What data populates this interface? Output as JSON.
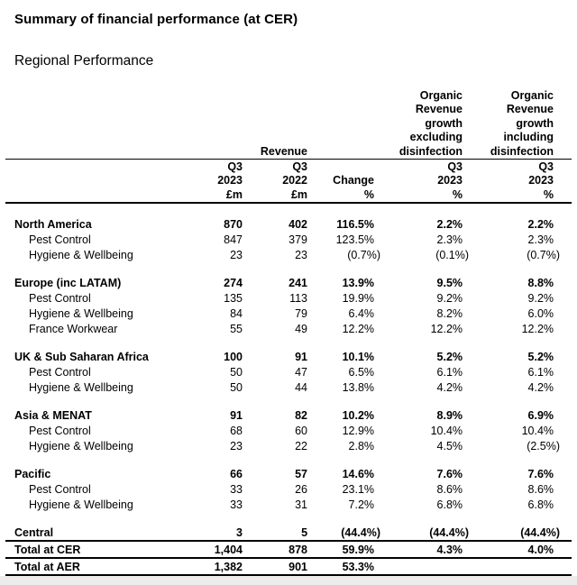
{
  "page": {
    "title": "Summary of financial performance (at CER)",
    "subtitle": "Regional Performance"
  },
  "table": {
    "header": {
      "revenue_group_label": "Revenue",
      "organic_excluding_label": "Organic Revenue growth excluding disinfection",
      "organic_including_label": "Organic Revenue growth including disinfection"
    },
    "sub_headers": [
      "Q3\n2023\n£m",
      "Q3\n2022\n£m",
      "Change\n%",
      "Q3\n2023\n%",
      "Q3\n2023\n%"
    ],
    "rows": [
      {
        "style": "spacer"
      },
      {
        "style": "group",
        "label": "North America",
        "values": [
          "870",
          "402",
          "116.5%",
          "2.2%",
          "2.2%"
        ]
      },
      {
        "style": "sub",
        "label": "Pest Control",
        "values": [
          "847",
          "379",
          "123.5%",
          "2.3%",
          "2.3%"
        ]
      },
      {
        "style": "sub",
        "label": "Hygiene & Wellbeing",
        "values": [
          "23",
          "23",
          "(0.7%)",
          "(0.1%)",
          "(0.7%)"
        ]
      },
      {
        "style": "spacer"
      },
      {
        "style": "group",
        "label": "Europe (inc LATAM)",
        "values": [
          "274",
          "241",
          "13.9%",
          "9.5%",
          "8.8%"
        ]
      },
      {
        "style": "sub",
        "label": "Pest Control",
        "values": [
          "135",
          "113",
          "19.9%",
          "9.2%",
          "9.2%"
        ]
      },
      {
        "style": "sub",
        "label": "Hygiene & Wellbeing",
        "values": [
          "84",
          "79",
          "6.4%",
          "8.2%",
          "6.0%"
        ]
      },
      {
        "style": "sub",
        "label": "France Workwear",
        "values": [
          "55",
          "49",
          "12.2%",
          "12.2%",
          "12.2%"
        ]
      },
      {
        "style": "spacer"
      },
      {
        "style": "group",
        "label": "UK & Sub Saharan Africa",
        "values": [
          "100",
          "91",
          "10.1%",
          "5.2%",
          "5.2%"
        ]
      },
      {
        "style": "sub",
        "label": "Pest Control",
        "values": [
          "50",
          "47",
          "6.5%",
          "6.1%",
          "6.1%"
        ]
      },
      {
        "style": "sub",
        "label": "Hygiene & Wellbeing",
        "values": [
          "50",
          "44",
          "13.8%",
          "4.2%",
          "4.2%"
        ]
      },
      {
        "style": "spacer"
      },
      {
        "style": "group",
        "label": "Asia & MENAT",
        "values": [
          "91",
          "82",
          "10.2%",
          "8.9%",
          "6.9%"
        ]
      },
      {
        "style": "sub",
        "label": "Pest Control",
        "values": [
          "68",
          "60",
          "12.9%",
          "10.4%",
          "10.4%"
        ]
      },
      {
        "style": "sub",
        "label": "Hygiene & Wellbeing",
        "values": [
          "23",
          "22",
          "2.8%",
          "4.5%",
          "(2.5%)"
        ]
      },
      {
        "style": "spacer"
      },
      {
        "style": "group",
        "label": "Pacific",
        "values": [
          "66",
          "57",
          "14.6%",
          "7.6%",
          "7.6%"
        ]
      },
      {
        "style": "sub",
        "label": "Pest Control",
        "values": [
          "33",
          "26",
          "23.1%",
          "8.6%",
          "8.6%"
        ]
      },
      {
        "style": "sub",
        "label": "Hygiene & Wellbeing",
        "values": [
          "33",
          "31",
          "7.2%",
          "6.8%",
          "6.8%"
        ]
      },
      {
        "style": "spacer"
      },
      {
        "style": "central",
        "label": "Central",
        "values": [
          "3",
          "5",
          "(44.4%)",
          "(44.4%)",
          "(44.4%)"
        ]
      },
      {
        "style": "total-cer",
        "label": "Total at CER",
        "values": [
          "1,404",
          "878",
          "59.9%",
          "4.3%",
          "4.0%"
        ]
      },
      {
        "style": "total-aer",
        "label": "Total at AER",
        "values": [
          "1,382",
          "901",
          "53.3%",
          "",
          ""
        ]
      }
    ]
  }
}
